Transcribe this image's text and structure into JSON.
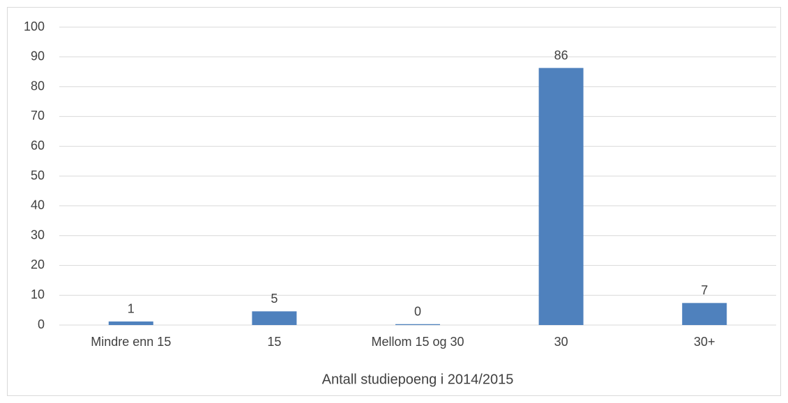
{
  "chart_data": {
    "type": "bar",
    "x_label": "Antall studiepoeng i 2014/2015",
    "categories": [
      "Mindre enn 15",
      "15",
      "Mellom 15 og 30",
      "30",
      "30+"
    ],
    "values": [
      1.2,
      4.6,
      0.3,
      86.3,
      7.4
    ],
    "value_labels": [
      "1",
      "5",
      "0",
      "86",
      "7"
    ],
    "color": "#4f81bd",
    "ylim": [
      0,
      100
    ],
    "yticks": [
      0,
      10,
      20,
      30,
      40,
      50,
      60,
      70,
      80,
      90,
      100
    ],
    "grid": true
  }
}
